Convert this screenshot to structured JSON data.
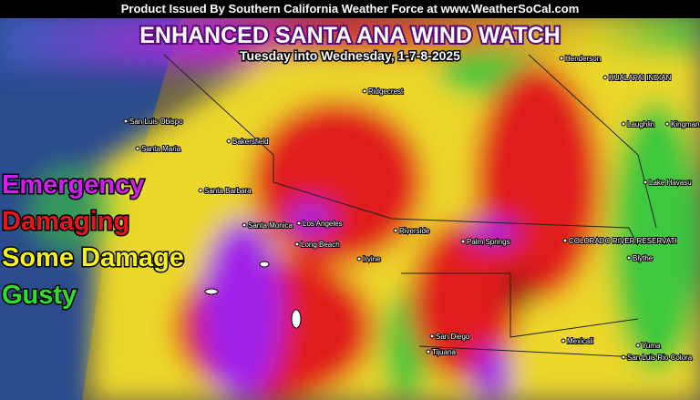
{
  "header": {
    "banner": "Product Issued By Southern California Weather Force at www.WeatherSoCal.com",
    "title": "ENHANCED SANTA ANA WIND WATCH",
    "subtitle": "Tuesday into Wednesday, 1-7-8-2025"
  },
  "legend": [
    {
      "label": "Emergency",
      "color": "#d21cf0"
    },
    {
      "label": "Damaging",
      "color": "#e8141c"
    },
    {
      "label": "Some Damage",
      "color": "#f4f01c"
    },
    {
      "label": "Gusty",
      "color": "#2ee02e"
    }
  ],
  "places": [
    "Henderson",
    "HUALAPAI INDIAN",
    "Ridgecrest",
    "San Luis Obispo",
    "Bakersfield",
    "Laughlin",
    "Kingman",
    "Santa Maria",
    "Lake Havasu",
    "Santa Barbara",
    "Santa Monica",
    "Los Angeles",
    "Long Beach",
    "Riverside",
    "Palm Springs",
    "COLORADO RIVER RESERVATI",
    "Irvine",
    "Blythe",
    "San Diego",
    "Tijuana",
    "Mexicali",
    "Yuma",
    "San Luis Rio Colora"
  ]
}
